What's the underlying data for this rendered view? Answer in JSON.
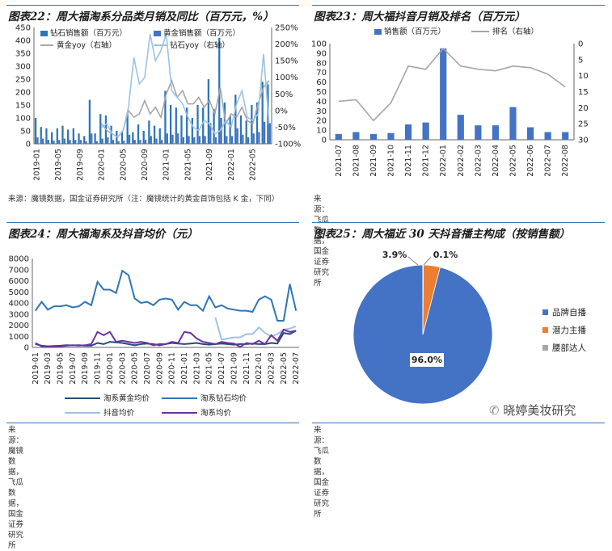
{
  "charts": {
    "c22": {
      "title": "图表22：周大福淘系分品类月销及同比（百万元，%）",
      "source": "来源：魔镜数据，国金证券研究所（注：魔镜统计的黄金首饰包括 K 金，下同）"
    },
    "c23": {
      "title": "图表23：周大福抖音月销及排名（百万元）",
      "source": "来源：飞瓜数据，国金证券研究所"
    },
    "c24": {
      "title": "图表24：周大福淘系及抖音均价（元）",
      "source": "来源：魔镜数据，飞瓜数据，国金证券研究所"
    },
    "c25": {
      "title": "图表25：周大福近 30 天抖音播主构成（按销售额）",
      "source": "来源：飞瓜数据，国金证券研究所"
    }
  },
  "watermark": "晓婷美妆研究",
  "colors": {
    "blue_dark": "#2e75b6",
    "blue_mid": "#4472c4",
    "blue_light": "#9dc3e6",
    "gray": "#a6a6a6",
    "orange": "#ed7d31",
    "purple": "#7030a0",
    "navy": "#1f4e79"
  },
  "chart_data": [
    {
      "id": "c22",
      "type": "bar",
      "categories": [
        "2019-01",
        "2019-02",
        "2019-03",
        "2019-04",
        "2019-05",
        "2019-06",
        "2019-07",
        "2019-08",
        "2019-09",
        "2019-10",
        "2019-11",
        "2019-12",
        "2020-01",
        "2020-02",
        "2020-03",
        "2020-04",
        "2020-05",
        "2020-06",
        "2020-07",
        "2020-08",
        "2020-09",
        "2020-10",
        "2020-11",
        "2020-12",
        "2021-01",
        "2021-02",
        "2021-03",
        "2021-04",
        "2021-05",
        "2021-06",
        "2021-07",
        "2021-08",
        "2021-09",
        "2021-10",
        "2021-11",
        "2021-12",
        "2022-01",
        "2022-02",
        "2022-03",
        "2022-04",
        "2022-05",
        "2022-06",
        "2022-07",
        "2022-08"
      ],
      "x_ticks": [
        "2019-01",
        "2019-05",
        "2019-09",
        "2020-01",
        "2020-05",
        "2020-09",
        "2021-01",
        "2021-05",
        "2021-09",
        "2022-01",
        "2022-05"
      ],
      "series": [
        {
          "name": "钻石销售额（百万元）",
          "axis": "left",
          "values": [
            100,
            65,
            60,
            45,
            60,
            70,
            55,
            60,
            40,
            30,
            170,
            40,
            115,
            110,
            70,
            50,
            50,
            120,
            45,
            75,
            50,
            90,
            70,
            60,
            205,
            150,
            140,
            110,
            140,
            100,
            150,
            140,
            250,
            135,
            410,
            160,
            110,
            190,
            110,
            90,
            150,
            160,
            240,
            230
          ]
        },
        {
          "name": "黄金销售额（百万元）",
          "axis": "left",
          "values": [
            25,
            20,
            15,
            12,
            15,
            20,
            15,
            15,
            15,
            10,
            40,
            10,
            20,
            25,
            15,
            10,
            12,
            35,
            15,
            15,
            15,
            30,
            20,
            15,
            40,
            35,
            40,
            25,
            30,
            25,
            30,
            30,
            80,
            25,
            100,
            30,
            30,
            60,
            35,
            25,
            40,
            45,
            85,
            80
          ]
        },
        {
          "name": "黄金yoy（右轴）",
          "axis": "right",
          "values": [
            null,
            null,
            null,
            null,
            null,
            null,
            null,
            null,
            null,
            null,
            null,
            null,
            -40,
            -60,
            -70,
            -80,
            -60,
            0,
            -20,
            -10,
            30,
            -10,
            10,
            -20,
            50,
            90,
            40,
            60,
            20,
            20,
            40,
            10,
            30,
            -10,
            70,
            -40,
            -10,
            -20,
            10,
            -30,
            -40,
            20,
            70,
            90
          ]
        },
        {
          "name": "钻石yoy（右轴）",
          "axis": "right",
          "values": [
            null,
            null,
            null,
            null,
            null,
            null,
            null,
            null,
            null,
            null,
            null,
            null,
            -50,
            -40,
            -70,
            -80,
            -60,
            10,
            160,
            80,
            100,
            230,
            150,
            180,
            230,
            60,
            40,
            20,
            -20,
            -50,
            -60,
            -30,
            -40,
            -70,
            -60,
            -30,
            -50,
            20,
            60,
            -20,
            -30,
            -10,
            170,
            -40
          ]
        }
      ],
      "ylim": [
        0,
        450
      ],
      "y2lim": [
        -100,
        250
      ],
      "y_ticks": [
        0,
        50,
        100,
        150,
        200,
        250,
        300,
        350,
        400,
        450
      ],
      "y2_ticks": [
        "-100%",
        "-50%",
        "0%",
        "50%",
        "100%",
        "150%",
        "200%",
        "250%"
      ],
      "legend": "top"
    },
    {
      "id": "c23",
      "type": "bar",
      "categories": [
        "2021-07",
        "2021-08",
        "2021-09",
        "2021-10",
        "2021-11",
        "2021-12",
        "2022-01",
        "2022-02",
        "2022-03",
        "2022-04",
        "2022-05",
        "2022-06",
        "2022-07",
        "2022-08"
      ],
      "series": [
        {
          "name": "销售额（百万元）",
          "axis": "left",
          "values": [
            6,
            8,
            6,
            7,
            16,
            18,
            95,
            26,
            15,
            15,
            34,
            13,
            8,
            8
          ]
        },
        {
          "name": "排名（右轴）",
          "axis": "right",
          "inverted": true,
          "values": [
            18,
            17.5,
            24,
            18.5,
            7,
            8,
            1.5,
            7,
            8,
            8.5,
            7,
            7.5,
            9.5,
            13.5
          ]
        }
      ],
      "ylim": [
        0,
        100
      ],
      "y2lim": [
        0,
        30
      ],
      "y_ticks": [
        0,
        10,
        20,
        30,
        40,
        50,
        60,
        70,
        80,
        90,
        100
      ],
      "y2_ticks": [
        0,
        5,
        10,
        15,
        20,
        25,
        30
      ],
      "legend": "top"
    },
    {
      "id": "c24",
      "type": "line",
      "categories": [
        "2019-01",
        "2019-02",
        "2019-03",
        "2019-04",
        "2019-05",
        "2019-06",
        "2019-07",
        "2019-08",
        "2019-09",
        "2019-10",
        "2019-11",
        "2019-12",
        "2020-01",
        "2020-02",
        "2020-03",
        "2020-04",
        "2020-05",
        "2020-06",
        "2020-07",
        "2020-08",
        "2020-09",
        "2020-10",
        "2020-11",
        "2020-12",
        "2021-01",
        "2021-02",
        "2021-03",
        "2021-04",
        "2021-05",
        "2021-06",
        "2021-07",
        "2021-08",
        "2021-09",
        "2021-10",
        "2021-11",
        "2021-12",
        "2022-01",
        "2022-02",
        "2022-03",
        "2022-04",
        "2022-05",
        "2022-06",
        "2022-07"
      ],
      "x_ticks": [
        "2019-01",
        "2019-03",
        "2019-05",
        "2019-07",
        "2019-09",
        "2019-11",
        "2020-01",
        "2020-03",
        "2020-05",
        "2020-07",
        "2020-09",
        "2020-11",
        "2021-01",
        "2021-03",
        "2021-05",
        "2021-07",
        "2021-09",
        "2021-11",
        "2022-01",
        "2022-03",
        "2022-05",
        "2022-07"
      ],
      "series": [
        {
          "name": "淘系黄金均价",
          "values": [
            300,
            150,
            100,
            120,
            150,
            200,
            180,
            200,
            150,
            150,
            400,
            300,
            500,
            450,
            400,
            300,
            200,
            300,
            350,
            300,
            200,
            300,
            400,
            350,
            300,
            350,
            400,
            300,
            250,
            300,
            350,
            300,
            250,
            300,
            300,
            350,
            300,
            300,
            400,
            350,
            1300,
            1200,
            1500
          ]
        },
        {
          "name": "淘系钻石均价",
          "values": [
            3300,
            4100,
            3400,
            3700,
            3700,
            3800,
            3600,
            3700,
            4100,
            3800,
            5900,
            5200,
            5200,
            4900,
            6900,
            6500,
            4400,
            4000,
            4100,
            3800,
            4300,
            4400,
            4300,
            3400,
            4100,
            3800,
            3800,
            3300,
            4600,
            3600,
            3800,
            3500,
            3400,
            3300,
            3300,
            3200,
            4300,
            4600,
            4300,
            2400,
            2400,
            5700,
            3300
          ]
        },
        {
          "name": "抖音均价",
          "values": [
            null,
            null,
            null,
            null,
            null,
            null,
            null,
            null,
            null,
            null,
            null,
            null,
            null,
            null,
            null,
            null,
            null,
            null,
            null,
            null,
            null,
            null,
            null,
            null,
            null,
            null,
            null,
            null,
            null,
            2700,
            700,
            800,
            900,
            900,
            1200,
            1200,
            1800,
            1300,
            1000,
            1200,
            1600,
            1700,
            1900
          ]
        },
        {
          "name": "淘系均价",
          "values": [
            400,
            100,
            50,
            80,
            100,
            150,
            200,
            150,
            200,
            300,
            1400,
            1100,
            1400,
            500,
            600,
            500,
            400,
            500,
            400,
            200,
            300,
            300,
            500,
            400,
            1400,
            1300,
            800,
            500,
            400,
            300,
            500,
            400,
            350,
            50,
            400,
            300,
            600,
            300,
            1100,
            600,
            1600,
            1400,
            1500
          ]
        }
      ],
      "ylim": [
        0,
        8000
      ],
      "y_ticks": [
        0,
        1000,
        2000,
        3000,
        4000,
        5000,
        6000,
        7000,
        8000
      ],
      "legend": "bottom"
    },
    {
      "id": "c25",
      "type": "pie",
      "slices": [
        {
          "name": "品牌自播",
          "value": 96.0,
          "label": "96.0%"
        },
        {
          "name": "潜力主播",
          "value": 3.9,
          "label": "3.9%"
        },
        {
          "name": "腰部达人",
          "value": 0.1,
          "label": "0.1%"
        }
      ],
      "legend": "right"
    }
  ]
}
